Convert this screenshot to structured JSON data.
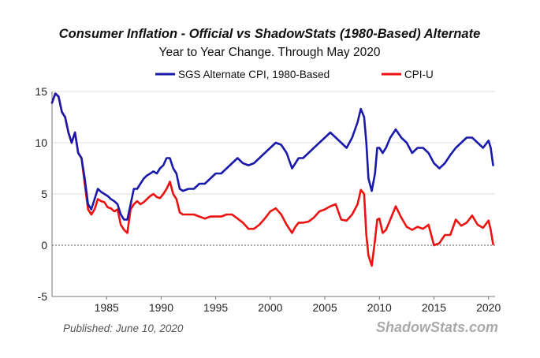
{
  "chart_data": {
    "type": "line",
    "title": "Consumer Inflation - Official vs ShadowStats (1980-Based) Alternate",
    "subtitle": "Year to Year Change. Through May 2020",
    "xlim": [
      1980,
      2020.6
    ],
    "ylim": [
      -5,
      15
    ],
    "x_ticks": [
      1985,
      1990,
      1995,
      2000,
      2005,
      2010,
      2015,
      2020
    ],
    "y_ticks": [
      -5,
      0,
      5,
      10,
      15
    ],
    "grid": "horizontal",
    "legend_position": "top-center",
    "series": [
      {
        "name": "SGS Alternate CPI, 1980-Based",
        "color": "#1a1aaa",
        "x": [
          1980.0,
          1980.3,
          1980.6,
          1980.9,
          1981.2,
          1981.5,
          1981.8,
          1982.1,
          1982.4,
          1982.7,
          1983.0,
          1983.3,
          1983.6,
          1983.9,
          1984.2,
          1984.5,
          1984.8,
          1985.1,
          1985.4,
          1985.7,
          1986.0,
          1986.3,
          1986.6,
          1986.9,
          1987.2,
          1987.5,
          1987.8,
          1988.1,
          1988.4,
          1988.7,
          1989.0,
          1989.3,
          1989.6,
          1989.9,
          1990.2,
          1990.5,
          1990.8,
          1991.1,
          1991.4,
          1991.7,
          1992.0,
          1992.5,
          1993.0,
          1993.5,
          1994.0,
          1994.5,
          1995.0,
          1995.5,
          1996.0,
          1996.5,
          1997.0,
          1997.5,
          1998.0,
          1998.5,
          1999.0,
          1999.5,
          2000.0,
          2000.5,
          2001.0,
          2001.5,
          2002.0,
          2002.3,
          2002.6,
          2003.0,
          2003.5,
          2004.0,
          2004.5,
          2005.0,
          2005.5,
          2006.0,
          2006.5,
          2007.0,
          2007.5,
          2008.0,
          2008.3,
          2008.6,
          2008.8,
          2009.0,
          2009.3,
          2009.6,
          2009.8,
          2010.0,
          2010.3,
          2010.6,
          2011.0,
          2011.5,
          2012.0,
          2012.5,
          2013.0,
          2013.5,
          2014.0,
          2014.5,
          2015.0,
          2015.5,
          2016.0,
          2016.5,
          2017.0,
          2017.5,
          2018.0,
          2018.5,
          2019.0,
          2019.5,
          2020.0,
          2020.2,
          2020.42
        ],
        "values": [
          13.9,
          14.8,
          14.5,
          13.0,
          12.5,
          11.0,
          10.0,
          11.0,
          9.0,
          8.5,
          6.5,
          4.0,
          3.5,
          4.5,
          5.5,
          5.2,
          5.0,
          4.8,
          4.5,
          4.3,
          4.0,
          3.0,
          2.5,
          2.5,
          4.0,
          5.5,
          5.5,
          6.0,
          6.5,
          6.8,
          7.0,
          7.2,
          7.0,
          7.5,
          7.8,
          8.5,
          8.5,
          7.5,
          7.0,
          5.5,
          5.3,
          5.5,
          5.5,
          6.0,
          6.0,
          6.5,
          7.0,
          7.0,
          7.5,
          8.0,
          8.5,
          8.0,
          7.8,
          8.0,
          8.5,
          9.0,
          9.5,
          10.0,
          9.8,
          9.0,
          7.5,
          8.0,
          8.5,
          8.5,
          9.0,
          9.5,
          10.0,
          10.5,
          11.0,
          10.5,
          10.0,
          9.5,
          10.5,
          12.0,
          13.3,
          12.5,
          10.0,
          6.5,
          5.3,
          7.0,
          9.5,
          9.5,
          9.0,
          9.5,
          10.5,
          11.3,
          10.5,
          10.0,
          9.0,
          9.5,
          9.5,
          9.0,
          8.0,
          7.5,
          8.0,
          8.8,
          9.5,
          10.0,
          10.5,
          10.5,
          10.0,
          9.5,
          10.2,
          9.5,
          7.8
        ]
      },
      {
        "name": "CPI-U",
        "color": "#ee1111",
        "x": [
          1980.0,
          1980.3,
          1980.6,
          1980.9,
          1981.2,
          1981.5,
          1981.8,
          1982.1,
          1982.4,
          1982.7,
          1983.0,
          1983.3,
          1983.6,
          1983.9,
          1984.2,
          1984.5,
          1984.8,
          1985.1,
          1985.4,
          1985.7,
          1986.0,
          1986.3,
          1986.6,
          1986.9,
          1987.2,
          1987.5,
          1987.8,
          1988.1,
          1988.4,
          1988.7,
          1989.0,
          1989.3,
          1989.6,
          1989.9,
          1990.2,
          1990.5,
          1990.8,
          1991.1,
          1991.4,
          1991.7,
          1992.0,
          1992.5,
          1993.0,
          1993.5,
          1994.0,
          1994.5,
          1995.0,
          1995.5,
          1996.0,
          1996.5,
          1997.0,
          1997.5,
          1998.0,
          1998.5,
          1999.0,
          1999.5,
          2000.0,
          2000.5,
          2001.0,
          2001.5,
          2002.0,
          2002.3,
          2002.6,
          2003.0,
          2003.5,
          2004.0,
          2004.5,
          2005.0,
          2005.5,
          2006.0,
          2006.5,
          2007.0,
          2007.5,
          2008.0,
          2008.3,
          2008.6,
          2008.8,
          2009.0,
          2009.3,
          2009.6,
          2009.8,
          2010.0,
          2010.3,
          2010.6,
          2011.0,
          2011.5,
          2012.0,
          2012.5,
          2013.0,
          2013.5,
          2014.0,
          2014.5,
          2015.0,
          2015.5,
          2016.0,
          2016.5,
          2017.0,
          2017.5,
          2018.0,
          2018.5,
          2019.0,
          2019.5,
          2020.0,
          2020.2,
          2020.42
        ],
        "values": [
          13.9,
          14.8,
          14.5,
          13.0,
          12.5,
          11.0,
          10.0,
          11.0,
          9.0,
          8.5,
          6.0,
          3.5,
          3.0,
          3.5,
          4.5,
          4.3,
          4.2,
          3.7,
          3.6,
          3.3,
          3.5,
          2.0,
          1.5,
          1.2,
          3.5,
          4.0,
          4.3,
          4.0,
          4.2,
          4.5,
          4.8,
          5.0,
          4.7,
          4.6,
          5.0,
          5.5,
          6.2,
          5.0,
          4.5,
          3.2,
          3.0,
          3.0,
          3.0,
          2.8,
          2.6,
          2.8,
          2.8,
          2.8,
          3.0,
          3.0,
          2.6,
          2.2,
          1.6,
          1.6,
          2.0,
          2.6,
          3.3,
          3.6,
          3.0,
          2.0,
          1.2,
          1.8,
          2.2,
          2.2,
          2.3,
          2.7,
          3.3,
          3.5,
          3.8,
          4.0,
          2.5,
          2.4,
          3.0,
          4.0,
          5.4,
          5.0,
          1.0,
          -1.0,
          -2.0,
          0.5,
          2.5,
          2.6,
          1.2,
          1.5,
          2.5,
          3.8,
          2.7,
          1.8,
          1.5,
          1.8,
          1.6,
          2.0,
          0.0,
          0.2,
          1.0,
          1.0,
          2.5,
          1.9,
          2.2,
          2.9,
          2.0,
          1.7,
          2.4,
          1.5,
          0.1
        ]
      }
    ]
  },
  "footer": {
    "published": "Published: June 10, 2020",
    "brand": "ShadowStats.com"
  }
}
